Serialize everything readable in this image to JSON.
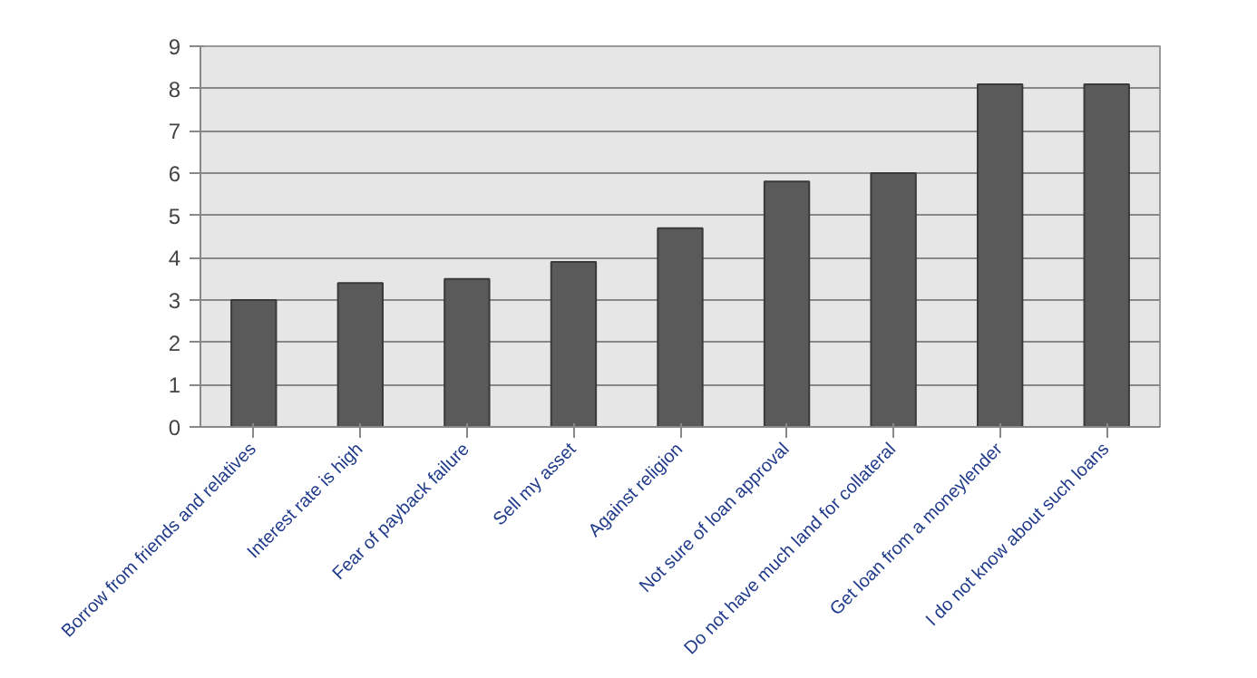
{
  "chart_data": {
    "type": "bar",
    "categories": [
      "Borrow from friends and relatives",
      "Interest rate is high",
      "Fear of payback failure",
      "Sell my asset",
      "Against religion",
      "Not sure of loan approval",
      "Do not have much land for collateral",
      "Get loan from a moneylender",
      "I do not know about such loans"
    ],
    "values": [
      3.0,
      3.4,
      3.5,
      3.9,
      4.7,
      5.8,
      6.0,
      8.1,
      8.1
    ],
    "color": "#5a5a5a",
    "ylim": [
      0,
      9
    ],
    "yticks": [
      0,
      1,
      2,
      3,
      4,
      5,
      6,
      7,
      8,
      9
    ],
    "grid": "y"
  }
}
